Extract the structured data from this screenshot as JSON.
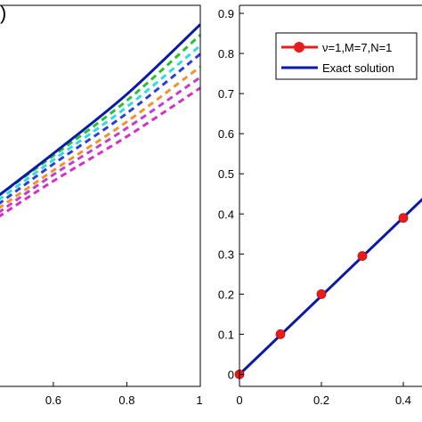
{
  "panel_label_fragment": ")",
  "chart_data": [
    {
      "type": "line",
      "xlim": [
        0.45,
        1.0
      ],
      "ylim": [
        0.0,
        0.9
      ],
      "x_ticks": [
        0.6,
        0.8,
        1
      ],
      "x_tick_labels": [
        "0.6",
        "0.8",
        "1"
      ],
      "grid": false,
      "series": [
        {
          "style": "solid",
          "color": "#0a1aa8",
          "x": [
            0.45,
            0.6,
            0.8,
            1.0
          ],
          "y": [
            0.45,
            0.55,
            0.69,
            0.855
          ]
        },
        {
          "style": "dashed",
          "color": "#22c52a",
          "x": [
            0.45,
            0.6,
            0.8,
            1.0
          ],
          "y": [
            0.45,
            0.545,
            0.675,
            0.83
          ]
        },
        {
          "style": "dashed",
          "color": "#2fd9e6",
          "x": [
            0.45,
            0.6,
            0.8,
            1.0
          ],
          "y": [
            0.44,
            0.535,
            0.66,
            0.805
          ]
        },
        {
          "style": "dashed",
          "color": "#2b3fd6",
          "x": [
            0.45,
            0.6,
            0.8,
            1.0
          ],
          "y": [
            0.43,
            0.525,
            0.645,
            0.785
          ]
        },
        {
          "style": "dashed",
          "color": "#f0922e",
          "x": [
            0.45,
            0.6,
            0.8,
            1.0
          ],
          "y": [
            0.42,
            0.51,
            0.625,
            0.755
          ]
        },
        {
          "style": "dashed",
          "color": "#c43bd3",
          "x": [
            0.45,
            0.6,
            0.8,
            1.0
          ],
          "y": [
            0.41,
            0.5,
            0.61,
            0.73
          ]
        },
        {
          "style": "dashed",
          "color": "#d62fc6",
          "x": [
            0.45,
            0.6,
            0.8,
            1.0
          ],
          "y": [
            0.4,
            0.485,
            0.59,
            0.705
          ]
        }
      ]
    },
    {
      "type": "line",
      "xlim": [
        0.0,
        0.45
      ],
      "ylim": [
        -0.03,
        0.92
      ],
      "x_ticks": [
        0,
        0.2,
        0.4
      ],
      "x_tick_labels": [
        "0",
        "0.2",
        "0.4"
      ],
      "y_ticks": [
        0,
        0.1,
        0.2,
        0.3,
        0.4,
        0.5,
        0.6,
        0.7,
        0.8,
        0.9
      ],
      "y_tick_labels": [
        "0",
        "0.1",
        "0.2",
        "0.3",
        "0.4",
        "0.5",
        "0.6",
        "0.7",
        "0.8",
        "0.9"
      ],
      "grid": false,
      "legend_position": "top-right",
      "series": [
        {
          "name": "ν=1,M=7,N=1",
          "style": "markers",
          "color": "#e81c1c",
          "x": [
            0,
            0.1,
            0.2,
            0.3,
            0.4
          ],
          "y": [
            0,
            0.1,
            0.2,
            0.295,
            0.39
          ]
        },
        {
          "name": "Exact solution",
          "style": "solid",
          "color": "#0a1aa8",
          "x": [
            0,
            0.45
          ],
          "y": [
            0,
            0.44
          ]
        }
      ]
    }
  ]
}
